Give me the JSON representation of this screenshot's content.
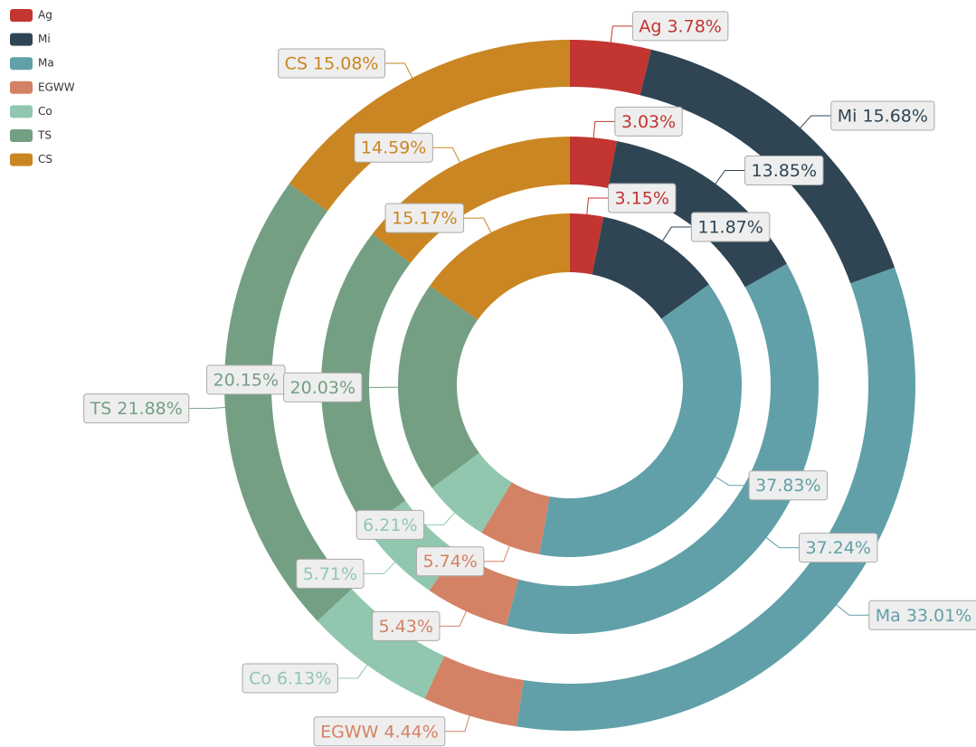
{
  "chart_data": {
    "type": "donut",
    "categories": [
      "Ag",
      "Mi",
      "Ma",
      "EGWW",
      "Co",
      "TS",
      "CS"
    ],
    "colors": [
      "#c23531",
      "#2f4554",
      "#61a0a8",
      "#d48265",
      "#91c7ae",
      "#749f83",
      "#ca8622"
    ],
    "legend": "top-left",
    "rings": [
      {
        "values": [
          3.78,
          15.68,
          33.01,
          4.44,
          6.13,
          21.88,
          15.08
        ],
        "value_labels": [
          "Ag 3.78%",
          "Mi 15.68%",
          "Ma 33.01%",
          "EGWW 4.44%",
          "Co 6.13%",
          "TS 21.88%",
          "CS 15.08%"
        ]
      },
      {
        "values": [
          3.03,
          13.85,
          37.24,
          5.43,
          5.71,
          20.15,
          14.59
        ],
        "value_labels": [
          "3.03%",
          "13.85%",
          "37.24%",
          "5.43%",
          "5.71%",
          "20.15%",
          "14.59%"
        ]
      },
      {
        "values": [
          3.15,
          11.87,
          37.83,
          5.74,
          6.21,
          20.03,
          15.17
        ],
        "value_labels": [
          "3.15%",
          "11.87%",
          "37.83%",
          "5.74%",
          "6.21%",
          "20.03%",
          "15.17%"
        ]
      }
    ]
  }
}
